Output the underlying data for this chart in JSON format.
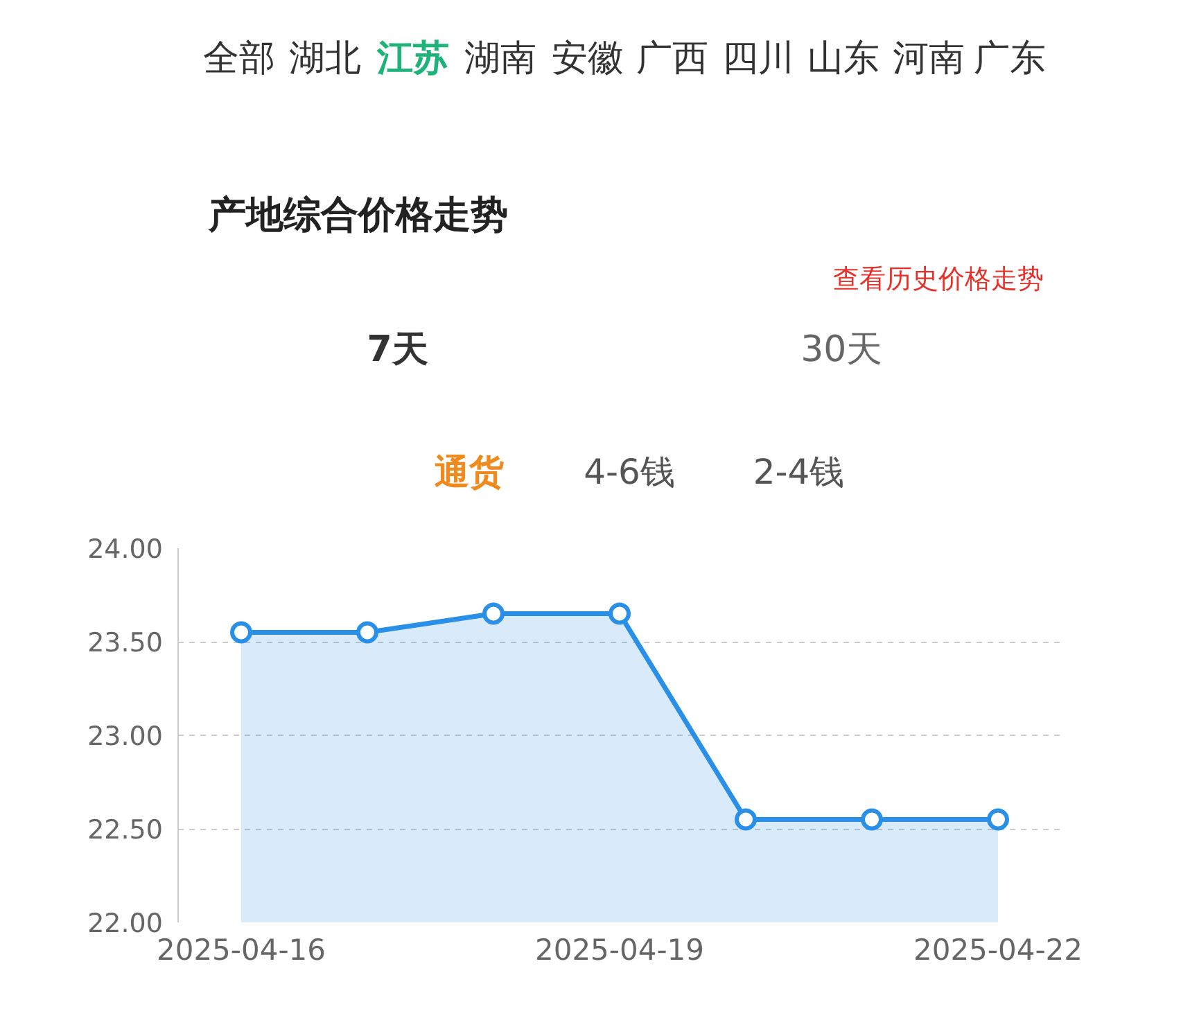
{
  "chart_data": {
    "type": "area",
    "title": "产地综合价格走势",
    "annotations": [
      "全部",
      "湖北",
      "江苏",
      "湖南",
      "安徽",
      "广西",
      "四川",
      "山东",
      "河南",
      "广东",
      "查看历史价格走势",
      "7天",
      "30天",
      "通货",
      "4-6钱",
      "2-4钱"
    ],
    "x": [
      "2025-04-16",
      "2025-04-17",
      "2025-04-18",
      "2025-04-19",
      "2025-04-20",
      "2025-04-21",
      "2025-04-22"
    ],
    "series": [
      {
        "color": "#2a8fe6",
        "values": [
          23.55,
          23.55,
          23.65,
          23.65,
          22.55,
          22.55,
          22.55
        ]
      }
    ],
    "xlim": [
      "2025-04-15T12:00",
      "2025-04-22T12:00"
    ],
    "xticks": [
      "2025-04-16",
      "2025-04-19",
      "2025-04-22"
    ],
    "ylim": [
      22,
      24
    ],
    "yticks": [
      {
        "value": 22,
        "label": "22.00"
      },
      {
        "value": 22.5,
        "label": "22.50"
      },
      {
        "value": 23,
        "label": "23.00"
      },
      {
        "value": 23.5,
        "label": "23.50"
      },
      {
        "value": 24,
        "label": "24.00"
      }
    ],
    "grid": "y",
    "marker": "circle",
    "line_style": "solid"
  }
}
